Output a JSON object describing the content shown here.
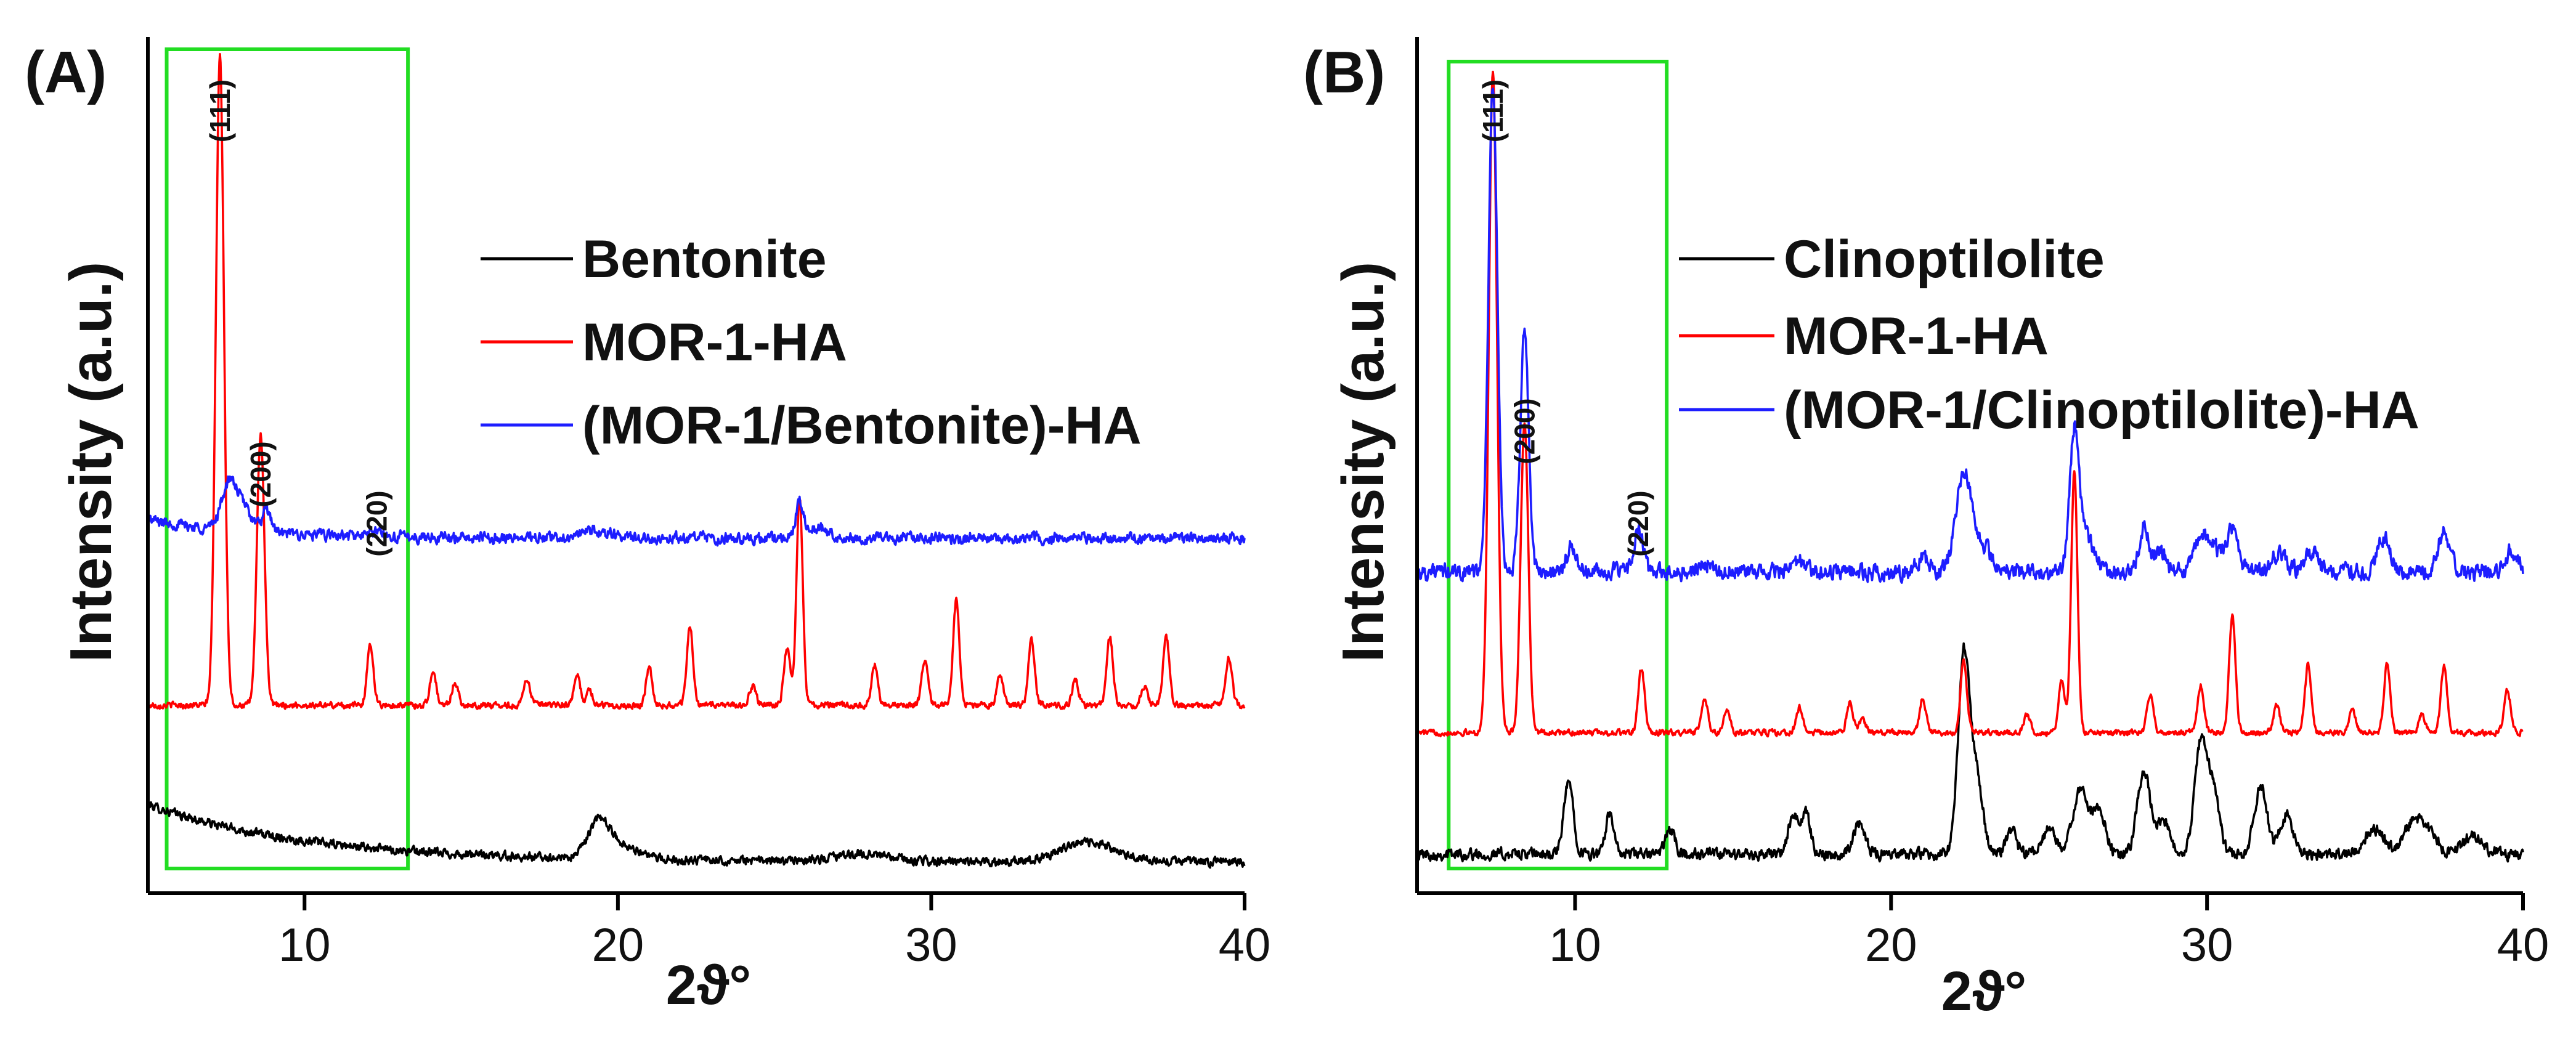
{
  "figure": {
    "panels": [
      {
        "id": "A",
        "label": "(A)"
      },
      {
        "id": "B",
        "label": "(B)"
      }
    ]
  },
  "chart_data": [
    {
      "type": "line",
      "panel": "(A)",
      "title": "",
      "xlabel": "2ϑ°",
      "ylabel": "Intensity (a.u.)",
      "xlim": [
        5,
        40
      ],
      "xticks": [
        10,
        20,
        30,
        40
      ],
      "yticks": [],
      "y_units": "arbitrary (traces vertically offset)",
      "highlight_box": {
        "x_range": [
          5.6,
          13.3
        ],
        "color": "#22dd22"
      },
      "peak_annotations": [
        {
          "text": "(111)",
          "x": 7.3
        },
        {
          "text": "(200)",
          "x": 8.6
        },
        {
          "text": "(220)",
          "x": 12.3
        }
      ],
      "series": [
        {
          "name": "Bentonite",
          "color": "#000000",
          "baseline": 3,
          "noise": 0.35,
          "slope": {
            "from": 8.5,
            "to": 3,
            "decay": 5
          },
          "peaks": [
            [
              19.4,
              3.5,
              0.35
            ],
            [
              20.2,
              1.2,
              0.5
            ],
            [
              27.8,
              0.7,
              0.8
            ],
            [
              34.8,
              1.5,
              0.8
            ],
            [
              35.6,
              0.6,
              0.8
            ]
          ]
        },
        {
          "name": "MOR-1-HA",
          "color": "#ff0000",
          "baseline": 18,
          "noise": 0.25,
          "peaks": [
            [
              7.3,
              62,
              0.13
            ],
            [
              8.6,
              26,
              0.12
            ],
            [
              12.1,
              5.8,
              0.1
            ],
            [
              14.1,
              3.2,
              0.1
            ],
            [
              14.8,
              2.2,
              0.1
            ],
            [
              17.1,
              2.6,
              0.1
            ],
            [
              18.7,
              2.8,
              0.1
            ],
            [
              19.1,
              1.4,
              0.1
            ],
            [
              21.0,
              3.5,
              0.1
            ],
            [
              22.3,
              7.5,
              0.1
            ],
            [
              24.3,
              1.8,
              0.1
            ],
            [
              25.4,
              5.5,
              0.1
            ],
            [
              25.8,
              20,
              0.1
            ],
            [
              28.2,
              3.8,
              0.1
            ],
            [
              29.8,
              4.5,
              0.1
            ],
            [
              30.8,
              10,
              0.1
            ],
            [
              32.2,
              2.8,
              0.1
            ],
            [
              33.2,
              6.2,
              0.1
            ],
            [
              34.6,
              2.4,
              0.1
            ],
            [
              35.7,
              6.5,
              0.1
            ],
            [
              36.8,
              1.8,
              0.1
            ],
            [
              37.5,
              6.5,
              0.1
            ],
            [
              39.5,
              4.5,
              0.1
            ]
          ]
        },
        {
          "name": "(MOR-1/Bentonite)-HA",
          "color": "#1d1dff",
          "baseline": 34,
          "noise": 0.45,
          "slope": {
            "from": 35.8,
            "to": 34,
            "decay": 3
          },
          "peaks": [
            [
              7.6,
              4.5,
              0.25
            ],
            [
              8.1,
              2.0,
              0.25
            ],
            [
              8.8,
              2.0,
              0.15
            ],
            [
              12.3,
              0.5,
              0.2
            ],
            [
              19.3,
              0.6,
              0.5
            ],
            [
              25.8,
              3.5,
              0.12
            ],
            [
              26.4,
              1.0,
              0.3
            ]
          ]
        }
      ]
    },
    {
      "type": "line",
      "panel": "(B)",
      "title": "",
      "xlabel": "2ϑ°",
      "ylabel": "Intensity (a.u.)",
      "xlim": [
        5,
        40
      ],
      "xticks": [
        10,
        20,
        30,
        40
      ],
      "yticks": [],
      "y_units": "arbitrary (traces vertically offset)",
      "highlight_box": {
        "x_range": [
          6.0,
          12.9
        ],
        "color": "#22dd22"
      },
      "peak_annotations": [
        {
          "text": "(111)",
          "x": 7.4
        },
        {
          "text": "(200)",
          "x": 8.4
        },
        {
          "text": "(220)",
          "x": 12.0
        }
      ],
      "series": [
        {
          "name": "Clinoptilolite",
          "color": "#000000",
          "baseline": 2,
          "noise": 0.5,
          "peaks": [
            [
              9.8,
              7.5,
              0.15
            ],
            [
              11.1,
              4.5,
              0.12
            ],
            [
              13.0,
              2.5,
              0.15
            ],
            [
              16.9,
              3.8,
              0.15
            ],
            [
              17.3,
              4.2,
              0.15
            ],
            [
              19.0,
              3.0,
              0.2
            ],
            [
              22.3,
              20,
              0.18
            ],
            [
              22.7,
              8,
              0.2
            ],
            [
              23.8,
              2.5,
              0.15
            ],
            [
              25.0,
              2.5,
              0.2
            ],
            [
              26.0,
              6.5,
              0.25
            ],
            [
              26.6,
              4.5,
              0.2
            ],
            [
              28.0,
              8.5,
              0.2
            ],
            [
              28.6,
              3.5,
              0.2
            ],
            [
              29.8,
              11,
              0.2
            ],
            [
              30.2,
              6,
              0.2
            ],
            [
              31.7,
              7,
              0.2
            ],
            [
              32.5,
              4,
              0.2
            ],
            [
              35.3,
              2.5,
              0.3
            ],
            [
              36.5,
              3.0,
              0.3
            ],
            [
              37.0,
              2.0,
              0.3
            ],
            [
              38.4,
              2.0,
              0.3
            ]
          ]
        },
        {
          "name": "MOR-1-HA",
          "color": "#ff0000",
          "baseline": 14.5,
          "noise": 0.25,
          "peaks": [
            [
              7.4,
              68,
              0.13
            ],
            [
              8.4,
              32,
              0.12
            ],
            [
              12.1,
              6.5,
              0.1
            ],
            [
              14.1,
              3.4,
              0.1
            ],
            [
              14.8,
              2.2,
              0.1
            ],
            [
              17.1,
              2.6,
              0.1
            ],
            [
              18.7,
              3.0,
              0.1
            ],
            [
              19.1,
              1.4,
              0.1
            ],
            [
              21.0,
              3.5,
              0.1
            ],
            [
              22.3,
              7.5,
              0.1
            ],
            [
              24.3,
              1.8,
              0.1
            ],
            [
              25.4,
              5.5,
              0.1
            ],
            [
              25.8,
              27,
              0.1
            ],
            [
              28.2,
              4.0,
              0.1
            ],
            [
              29.8,
              4.8,
              0.1
            ],
            [
              30.8,
              12,
              0.1
            ],
            [
              32.2,
              2.8,
              0.1
            ],
            [
              33.2,
              7,
              0.1
            ],
            [
              34.6,
              2.4,
              0.1
            ],
            [
              35.7,
              7,
              0.1
            ],
            [
              36.8,
              1.8,
              0.1
            ],
            [
              37.5,
              6.8,
              0.1
            ],
            [
              39.5,
              4.5,
              0.1
            ]
          ]
        },
        {
          "name": "(MOR-1/Clinoptilolite)-HA",
          "color": "#1d1dff",
          "baseline": 31,
          "noise": 0.7,
          "peaks": [
            [
              7.4,
              50,
              0.14
            ],
            [
              8.4,
              25,
              0.13
            ],
            [
              9.9,
              2.5,
              0.15
            ],
            [
              12.0,
              4.2,
              0.15
            ],
            [
              14.2,
              1.0,
              0.2
            ],
            [
              17.1,
              1.0,
              0.2
            ],
            [
              21.0,
              1.5,
              0.2
            ],
            [
              22.3,
              10,
              0.25
            ],
            [
              22.9,
              2.5,
              0.3
            ],
            [
              25.8,
              14,
              0.15
            ],
            [
              26.2,
              3.5,
              0.25
            ],
            [
              28.0,
              4.5,
              0.15
            ],
            [
              28.5,
              2.0,
              0.2
            ],
            [
              29.8,
              3.5,
              0.2
            ],
            [
              30.2,
              2.5,
              0.2
            ],
            [
              30.8,
              4.5,
              0.2
            ],
            [
              32.3,
              2.0,
              0.2
            ],
            [
              33.3,
              2.0,
              0.2
            ],
            [
              35.6,
              3.5,
              0.2
            ],
            [
              37.5,
              4.0,
              0.2
            ],
            [
              39.6,
              2.0,
              0.2
            ]
          ]
        }
      ]
    }
  ]
}
